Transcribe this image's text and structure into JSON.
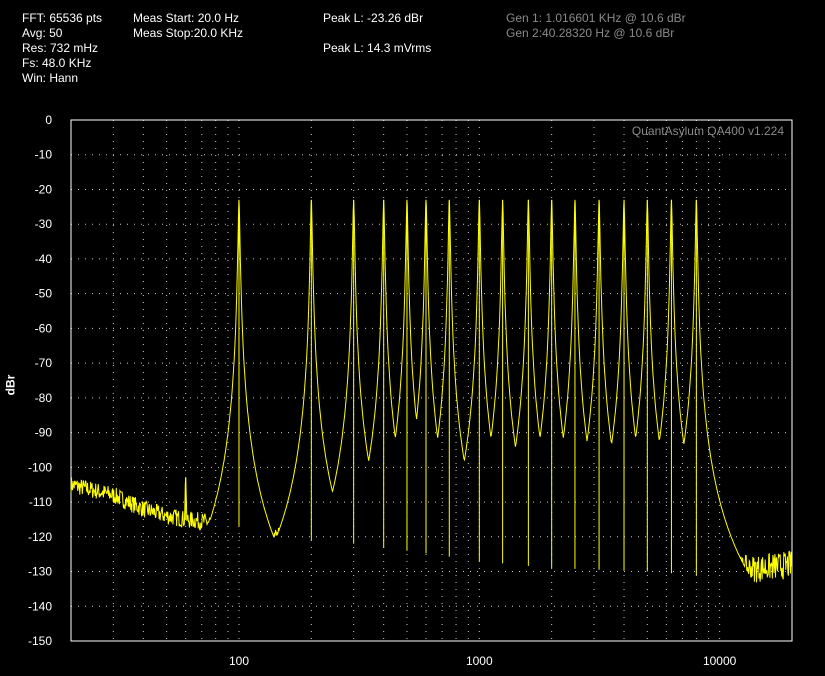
{
  "header": {
    "fft": "FFT: 65536 pts",
    "avg": "Avg: 50",
    "res": "Res: 732 mHz",
    "fs": "Fs: 48.0 KHz",
    "win": "Win: Hann",
    "meas_start": "Meas Start: 20.0 Hz",
    "meas_stop": "Meas Stop:20.0 KHz",
    "peak_l_db": "Peak L: -23.26 dBr",
    "peak_l_v": "Peak L: 14.3 mVrms",
    "gen1": "Gen 1: 1.016601 KHz @ 10.6  dBr",
    "gen2": "Gen 2:40.28320 Hz @ 10.6  dBr"
  },
  "colors": {
    "background": "#000000",
    "trace": "#ffff00",
    "grid": "#ffffff",
    "axis_text": "#ffffff",
    "muted_text": "#8a8a8a"
  },
  "chart_data": {
    "type": "line",
    "title": "",
    "watermark": "QuantAsylum QA400 v1.224",
    "xlabel": "",
    "ylabel": "dBr",
    "x_scale": "log",
    "xlim": [
      20,
      20000
    ],
    "ylim": [
      -150,
      0
    ],
    "x_ticks": [
      100,
      1000,
      10000
    ],
    "x_tick_labels": [
      "100",
      "1000",
      "10000"
    ],
    "y_ticks": [
      0,
      -10,
      -20,
      -30,
      -40,
      -50,
      -60,
      -70,
      -80,
      -90,
      -100,
      -110,
      -120,
      -130,
      -140,
      -150
    ],
    "grid": true,
    "series": [
      {
        "color": "#ffff00",
        "noise_floor": [
          {
            "x": 20,
            "y": -105
          },
          {
            "x": 30,
            "y": -108
          },
          {
            "x": 40,
            "y": -112
          },
          {
            "x": 50,
            "y": -114
          },
          {
            "x": 60,
            "y": -115
          },
          {
            "x": 80,
            "y": -116
          },
          {
            "x": 100,
            "y": -117
          },
          {
            "x": 150,
            "y": -120
          },
          {
            "x": 200,
            "y": -121
          },
          {
            "x": 300,
            "y": -122
          },
          {
            "x": 500,
            "y": -124
          },
          {
            "x": 800,
            "y": -126
          },
          {
            "x": 1000,
            "y": -127
          },
          {
            "x": 2000,
            "y": -129
          },
          {
            "x": 5000,
            "y": -130
          },
          {
            "x": 8000,
            "y": -131
          },
          {
            "x": 10000,
            "y": -130
          },
          {
            "x": 15000,
            "y": -129
          },
          {
            "x": 20000,
            "y": -128
          }
        ],
        "peaks": [
          {
            "x": 60,
            "y": -103
          },
          {
            "x": 100,
            "y": -23
          },
          {
            "x": 200,
            "y": -23
          },
          {
            "x": 300,
            "y": -23
          },
          {
            "x": 400,
            "y": -23
          },
          {
            "x": 500,
            "y": -23
          },
          {
            "x": 600,
            "y": -23
          },
          {
            "x": 750,
            "y": -23
          },
          {
            "x": 1000,
            "y": -23
          },
          {
            "x": 1250,
            "y": -23
          },
          {
            "x": 1600,
            "y": -23
          },
          {
            "x": 2000,
            "y": -23
          },
          {
            "x": 2500,
            "y": -23
          },
          {
            "x": 3150,
            "y": -23
          },
          {
            "x": 4000,
            "y": -23
          },
          {
            "x": 5000,
            "y": -23
          },
          {
            "x": 6300,
            "y": -23
          },
          {
            "x": 8000,
            "y": -23
          }
        ]
      }
    ]
  }
}
